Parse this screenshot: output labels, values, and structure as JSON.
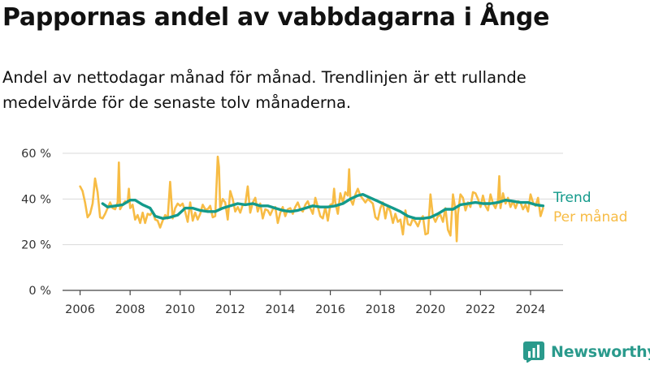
{
  "title": "Pappornas andel av vabbdagarna i Ånge",
  "subtitle": "Andel av nettodagar månad för månad. Trendlinjen är ett rullande medelvärde för de senaste tolv månaderna.",
  "brand": {
    "name": "Newsworthy",
    "logo_icon": "newsworthy-bar-chart-logo"
  },
  "chart_data": {
    "type": "line",
    "title": "Pappornas andel av vabbdagarna i Ånge",
    "subtitle": "Andel av nettodagar månad för månad. Trendlinjen är ett rullande medelvärde för de senaste tolv månaderna.",
    "xlabel": "",
    "ylabel": "",
    "xlim": [
      2005.3,
      2025.3
    ],
    "ylim": [
      0,
      60
    ],
    "x_ticks": [
      2006,
      2008,
      2010,
      2012,
      2014,
      2016,
      2018,
      2020,
      2022,
      2024
    ],
    "x_tick_labels": [
      "2006",
      "2008",
      "2010",
      "2012",
      "2014",
      "2016",
      "2018",
      "2020",
      "2022",
      "2024"
    ],
    "y_ticks": [
      0,
      20,
      40,
      60
    ],
    "y_tick_labels": [
      "0 %",
      "20 %",
      "40 %",
      "60 %"
    ],
    "grid": "horizontal",
    "legend": "right, inline labels",
    "series": [
      {
        "name": "Per månad",
        "color": "#f7bc45",
        "points": [
          [
            2006.0,
            45.5
          ],
          [
            2006.1,
            43.5
          ],
          [
            2006.2,
            38.5
          ],
          [
            2006.3,
            32.0
          ],
          [
            2006.4,
            33.5
          ],
          [
            2006.5,
            38.0
          ],
          [
            2006.6,
            49.0
          ],
          [
            2006.7,
            43.0
          ],
          [
            2006.8,
            32.0
          ],
          [
            2006.9,
            31.5
          ],
          [
            2007.0,
            33.5
          ],
          [
            2007.1,
            36.0
          ],
          [
            2007.2,
            38.5
          ],
          [
            2007.3,
            36.0
          ],
          [
            2007.4,
            35.5
          ],
          [
            2007.5,
            38.5
          ],
          [
            2007.55,
            56.0
          ],
          [
            2007.6,
            35.5
          ],
          [
            2007.7,
            37.5
          ],
          [
            2007.8,
            39.0
          ],
          [
            2007.9,
            38.5
          ],
          [
            2007.95,
            44.5
          ],
          [
            2008.0,
            36.0
          ],
          [
            2008.1,
            37.5
          ],
          [
            2008.2,
            31.0
          ],
          [
            2008.3,
            33.0
          ],
          [
            2008.4,
            29.5
          ],
          [
            2008.5,
            34.0
          ],
          [
            2008.6,
            29.5
          ],
          [
            2008.7,
            33.5
          ],
          [
            2008.8,
            33.0
          ],
          [
            2008.9,
            34.5
          ],
          [
            2009.0,
            31.0
          ],
          [
            2009.1,
            30.5
          ],
          [
            2009.2,
            27.5
          ],
          [
            2009.3,
            30.5
          ],
          [
            2009.4,
            33.0
          ],
          [
            2009.5,
            31.5
          ],
          [
            2009.6,
            47.5
          ],
          [
            2009.7,
            31.5
          ],
          [
            2009.8,
            36.0
          ],
          [
            2009.9,
            38.0
          ],
          [
            2010.0,
            37.0
          ],
          [
            2010.1,
            38.0
          ],
          [
            2010.2,
            34.5
          ],
          [
            2010.3,
            30.0
          ],
          [
            2010.4,
            38.5
          ],
          [
            2010.5,
            30.5
          ],
          [
            2010.6,
            34.0
          ],
          [
            2010.7,
            31.0
          ],
          [
            2010.8,
            33.5
          ],
          [
            2010.9,
            37.5
          ],
          [
            2011.0,
            35.5
          ],
          [
            2011.1,
            35.5
          ],
          [
            2011.2,
            37.0
          ],
          [
            2011.3,
            32.0
          ],
          [
            2011.4,
            32.5
          ],
          [
            2011.5,
            58.5
          ],
          [
            2011.55,
            54.0
          ],
          [
            2011.6,
            36.0
          ],
          [
            2011.7,
            40.0
          ],
          [
            2011.8,
            38.5
          ],
          [
            2011.9,
            31.0
          ],
          [
            2012.0,
            43.5
          ],
          [
            2012.1,
            40.0
          ],
          [
            2012.2,
            34.5
          ],
          [
            2012.3,
            36.5
          ],
          [
            2012.4,
            34.0
          ],
          [
            2012.5,
            37.5
          ],
          [
            2012.6,
            37.5
          ],
          [
            2012.7,
            45.5
          ],
          [
            2012.8,
            34.0
          ],
          [
            2012.9,
            38.5
          ],
          [
            2013.0,
            40.5
          ],
          [
            2013.1,
            34.5
          ],
          [
            2013.2,
            38.0
          ],
          [
            2013.3,
            31.5
          ],
          [
            2013.4,
            35.5
          ],
          [
            2013.5,
            35.0
          ],
          [
            2013.6,
            33.0
          ],
          [
            2013.7,
            35.5
          ],
          [
            2013.8,
            36.5
          ],
          [
            2013.9,
            29.5
          ],
          [
            2014.0,
            34.0
          ],
          [
            2014.1,
            36.5
          ],
          [
            2014.2,
            32.5
          ],
          [
            2014.3,
            35.5
          ],
          [
            2014.4,
            36.0
          ],
          [
            2014.5,
            33.5
          ],
          [
            2014.6,
            36.5
          ],
          [
            2014.7,
            38.5
          ],
          [
            2014.8,
            35.5
          ],
          [
            2014.9,
            34.5
          ],
          [
            2015.0,
            37.5
          ],
          [
            2015.1,
            39.0
          ],
          [
            2015.2,
            36.0
          ],
          [
            2015.3,
            33.5
          ],
          [
            2015.4,
            40.5
          ],
          [
            2015.5,
            36.5
          ],
          [
            2015.6,
            32.5
          ],
          [
            2015.7,
            31.5
          ],
          [
            2015.8,
            36.5
          ],
          [
            2015.9,
            30.5
          ],
          [
            2016.0,
            37.5
          ],
          [
            2016.1,
            38.0
          ],
          [
            2016.15,
            44.5
          ],
          [
            2016.2,
            38.5
          ],
          [
            2016.3,
            33.5
          ],
          [
            2016.4,
            42.5
          ],
          [
            2016.5,
            38.5
          ],
          [
            2016.6,
            43.0
          ],
          [
            2016.7,
            41.5
          ],
          [
            2016.75,
            53.0
          ],
          [
            2016.8,
            40.0
          ],
          [
            2016.9,
            37.5
          ],
          [
            2017.0,
            42.0
          ],
          [
            2017.1,
            44.5
          ],
          [
            2017.2,
            41.5
          ],
          [
            2017.3,
            40.0
          ],
          [
            2017.4,
            38.5
          ],
          [
            2017.5,
            40.0
          ],
          [
            2017.6,
            39.0
          ],
          [
            2017.7,
            38.0
          ],
          [
            2017.8,
            32.0
          ],
          [
            2017.9,
            31.0
          ],
          [
            2018.0,
            36.0
          ],
          [
            2018.1,
            38.5
          ],
          [
            2018.2,
            31.5
          ],
          [
            2018.3,
            37.0
          ],
          [
            2018.4,
            34.5
          ],
          [
            2018.5,
            29.5
          ],
          [
            2018.6,
            33.5
          ],
          [
            2018.7,
            30.0
          ],
          [
            2018.8,
            31.0
          ],
          [
            2018.9,
            24.5
          ],
          [
            2019.0,
            35.0
          ],
          [
            2019.1,
            29.0
          ],
          [
            2019.2,
            28.5
          ],
          [
            2019.3,
            31.5
          ],
          [
            2019.4,
            30.0
          ],
          [
            2019.5,
            28.0
          ],
          [
            2019.6,
            31.0
          ],
          [
            2019.7,
            32.5
          ],
          [
            2019.8,
            24.5
          ],
          [
            2019.9,
            25.0
          ],
          [
            2020.0,
            42.0
          ],
          [
            2020.1,
            32.5
          ],
          [
            2020.2,
            30.0
          ],
          [
            2020.3,
            32.5
          ],
          [
            2020.4,
            33.0
          ],
          [
            2020.5,
            30.0
          ],
          [
            2020.6,
            36.0
          ],
          [
            2020.7,
            26.5
          ],
          [
            2020.8,
            24.0
          ],
          [
            2020.9,
            42.0
          ],
          [
            2021.0,
            35.0
          ],
          [
            2021.05,
            21.5
          ],
          [
            2021.1,
            33.5
          ],
          [
            2021.2,
            42.0
          ],
          [
            2021.3,
            40.5
          ],
          [
            2021.4,
            35.0
          ],
          [
            2021.5,
            38.5
          ],
          [
            2021.6,
            36.5
          ],
          [
            2021.7,
            43.0
          ],
          [
            2021.8,
            42.5
          ],
          [
            2021.9,
            40.0
          ],
          [
            2022.0,
            36.5
          ],
          [
            2022.1,
            41.5
          ],
          [
            2022.2,
            37.0
          ],
          [
            2022.3,
            35.0
          ],
          [
            2022.4,
            42.0
          ],
          [
            2022.5,
            38.0
          ],
          [
            2022.6,
            36.0
          ],
          [
            2022.7,
            39.5
          ],
          [
            2022.75,
            50.0
          ],
          [
            2022.8,
            36.0
          ],
          [
            2022.9,
            42.5
          ],
          [
            2023.0,
            38.0
          ],
          [
            2023.1,
            40.5
          ],
          [
            2023.2,
            36.5
          ],
          [
            2023.3,
            39.0
          ],
          [
            2023.4,
            36.0
          ],
          [
            2023.5,
            39.0
          ],
          [
            2023.6,
            38.5
          ],
          [
            2023.7,
            35.5
          ],
          [
            2023.8,
            37.5
          ],
          [
            2023.9,
            34.5
          ],
          [
            2024.0,
            42.0
          ],
          [
            2024.1,
            38.5
          ],
          [
            2024.2,
            37.0
          ],
          [
            2024.3,
            40.5
          ],
          [
            2024.4,
            32.5
          ],
          [
            2024.5,
            36.0
          ]
        ]
      },
      {
        "name": "Trend",
        "color": "#139a8b",
        "points": [
          [
            2006.9,
            38.0
          ],
          [
            2007.1,
            36.5
          ],
          [
            2007.4,
            37.0
          ],
          [
            2007.7,
            37.5
          ],
          [
            2008.0,
            39.5
          ],
          [
            2008.2,
            39.5
          ],
          [
            2008.5,
            37.5
          ],
          [
            2008.8,
            36.0
          ],
          [
            2009.0,
            32.5
          ],
          [
            2009.3,
            31.5
          ],
          [
            2009.6,
            32.0
          ],
          [
            2009.9,
            33.0
          ],
          [
            2010.2,
            36.0
          ],
          [
            2010.5,
            36.0
          ],
          [
            2010.8,
            35.0
          ],
          [
            2011.1,
            34.5
          ],
          [
            2011.4,
            34.5
          ],
          [
            2011.7,
            36.0
          ],
          [
            2012.0,
            37.0
          ],
          [
            2012.3,
            38.0
          ],
          [
            2012.6,
            37.5
          ],
          [
            2012.9,
            38.0
          ],
          [
            2013.2,
            37.0
          ],
          [
            2013.5,
            37.0
          ],
          [
            2013.8,
            36.0
          ],
          [
            2014.1,
            35.0
          ],
          [
            2014.4,
            34.5
          ],
          [
            2014.7,
            35.0
          ],
          [
            2015.0,
            36.0
          ],
          [
            2015.3,
            37.0
          ],
          [
            2015.6,
            36.5
          ],
          [
            2015.9,
            36.5
          ],
          [
            2016.2,
            37.0
          ],
          [
            2016.5,
            38.0
          ],
          [
            2016.8,
            40.0
          ],
          [
            2017.1,
            41.5
          ],
          [
            2017.3,
            42.0
          ],
          [
            2017.6,
            40.5
          ],
          [
            2017.9,
            39.0
          ],
          [
            2018.2,
            37.5
          ],
          [
            2018.5,
            36.0
          ],
          [
            2018.8,
            34.5
          ],
          [
            2019.1,
            32.5
          ],
          [
            2019.4,
            31.5
          ],
          [
            2019.7,
            31.5
          ],
          [
            2020.0,
            32.0
          ],
          [
            2020.3,
            33.5
          ],
          [
            2020.6,
            35.5
          ],
          [
            2020.9,
            35.5
          ],
          [
            2021.2,
            37.5
          ],
          [
            2021.5,
            38.0
          ],
          [
            2021.8,
            38.5
          ],
          [
            2022.1,
            38.0
          ],
          [
            2022.4,
            38.0
          ],
          [
            2022.7,
            38.5
          ],
          [
            2023.0,
            39.5
          ],
          [
            2023.3,
            39.0
          ],
          [
            2023.6,
            38.5
          ],
          [
            2023.9,
            38.5
          ],
          [
            2024.2,
            37.5
          ],
          [
            2024.5,
            37.0
          ]
        ]
      }
    ]
  }
}
